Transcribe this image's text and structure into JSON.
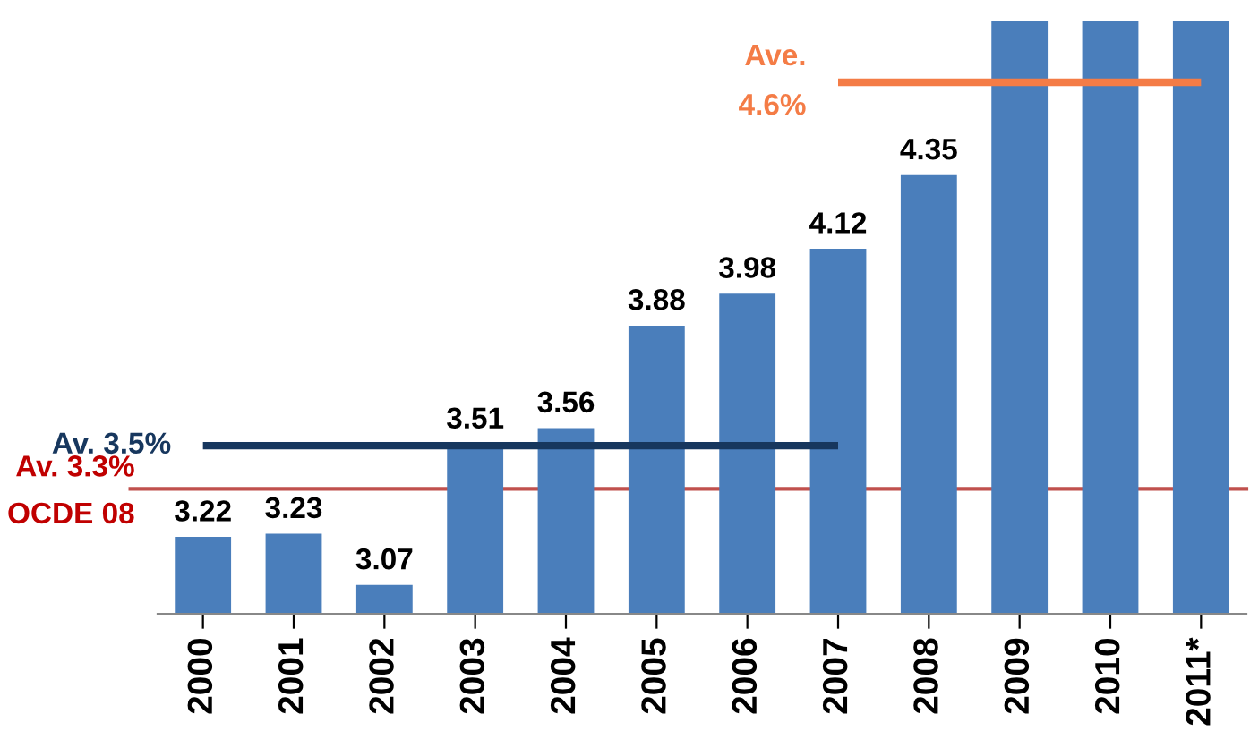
{
  "chart_data": {
    "type": "bar",
    "categories": [
      "2000",
      "2001",
      "2002",
      "2003",
      "2004",
      "2005",
      "2006",
      "2007",
      "2008",
      "2009",
      "2010",
      "2011*"
    ],
    "ylim": [
      2.98,
      4.83
    ],
    "tick_labels": "x",
    "grid": false,
    "legend": false,
    "series": [
      {
        "color": "#4a7ebb",
        "values": [
          3.22,
          3.23,
          3.07,
          3.51,
          3.56,
          3.88,
          3.98,
          4.12,
          4.35,
          4.83,
          4.83,
          4.83
        ],
        "value_labels": [
          "3.22",
          "3.23",
          "3.07",
          "3.51",
          "3.56",
          "3.88",
          "3.98",
          "4.12",
          "4.35",
          null,
          null,
          null
        ]
      },
      {
        "type": "line",
        "name": "Av. 3.5%",
        "color": "#17375e",
        "values": [
          3.505,
          3.505,
          3.505,
          3.505,
          3.505,
          3.505,
          3.505,
          3.505,
          null,
          null,
          null,
          null
        ]
      },
      {
        "type": "line",
        "name": "Ave. 4.6%",
        "color": "#f47c46",
        "values": [
          null,
          null,
          null,
          null,
          null,
          null,
          null,
          4.64,
          4.64,
          4.64,
          4.64,
          4.64
        ]
      }
    ],
    "ref_lines": [
      {
        "axis": "y",
        "value": 3.37,
        "label": "Av. 3.3%",
        "color": "#c0504d"
      }
    ],
    "annotations": [
      "OCDE 08"
    ]
  }
}
